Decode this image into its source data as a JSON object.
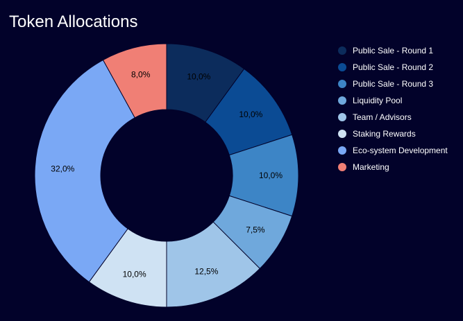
{
  "chart_data": {
    "type": "pie",
    "title": "Token Allocations",
    "donut": true,
    "legend_position": "right",
    "slices": [
      {
        "label": "Public Sale - Round 1",
        "value": 10.0,
        "display": "10,0%",
        "color": "#0c2c5c"
      },
      {
        "label": "Public Sale - Round 2",
        "value": 10.0,
        "display": "10,0%",
        "color": "#0b4b94"
      },
      {
        "label": "Public Sale - Round 3",
        "value": 10.0,
        "display": "10,0%",
        "color": "#3d85c6"
      },
      {
        "label": "Liquidity Pool",
        "value": 7.5,
        "display": "7,5%",
        "color": "#6fa8dc"
      },
      {
        "label": "Team / Advisors",
        "value": 12.5,
        "display": "12,5%",
        "color": "#9fc5e8"
      },
      {
        "label": "Staking Rewards",
        "value": 10.0,
        "display": "10,0%",
        "color": "#cfe2f3"
      },
      {
        "label": "Eco-system Development",
        "value": 32.0,
        "display": "32,0%",
        "color": "#7aa8f5"
      },
      {
        "label": "Marketing",
        "value": 8.0,
        "display": "8,0%",
        "color": "#f07f75"
      }
    ]
  }
}
